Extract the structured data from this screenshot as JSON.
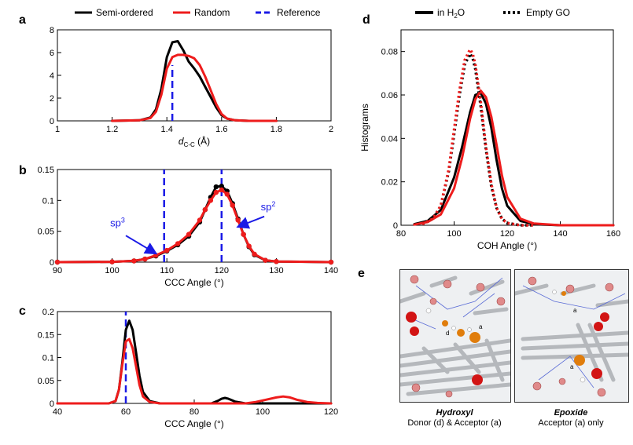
{
  "colors": {
    "black": "#000000",
    "red": "#ee1c1c",
    "blue": "#1a1ae6",
    "bg": "#ffffff"
  },
  "chart_data": [
    {
      "panel": "a",
      "type": "line",
      "xlabel": "d",
      "xlabel_sub": "C-C",
      "xlabel_unit": "(Å)",
      "ylabel": "",
      "xlim": [
        1,
        2
      ],
      "ylim": [
        0,
        8
      ],
      "xticks": [
        1,
        1.2,
        1.4,
        1.6,
        1.8,
        2
      ],
      "yticks": [
        0,
        2,
        4,
        6,
        8
      ],
      "legend": [
        {
          "name": "Semi-ordered",
          "color": "#000000",
          "style": "solid"
        },
        {
          "name": "Random",
          "color": "#ee1c1c",
          "style": "solid"
        },
        {
          "name": "Reference",
          "color": "#1a1ae6",
          "style": "dashed"
        }
      ],
      "series": [
        {
          "name": "Semi-ordered",
          "color": "#000000",
          "x": [
            1.2,
            1.3,
            1.34,
            1.36,
            1.38,
            1.4,
            1.42,
            1.44,
            1.46,
            1.48,
            1.5,
            1.52,
            1.54,
            1.56,
            1.58,
            1.6,
            1.62,
            1.65,
            1.7,
            1.8
          ],
          "y": [
            0,
            0.05,
            0.3,
            1.0,
            2.8,
            5.6,
            6.9,
            7.0,
            6.2,
            5.2,
            4.6,
            3.9,
            3.0,
            2.1,
            1.2,
            0.5,
            0.2,
            0.05,
            0,
            0
          ]
        },
        {
          "name": "Random",
          "color": "#ee1c1c",
          "x": [
            1.2,
            1.3,
            1.34,
            1.36,
            1.38,
            1.4,
            1.42,
            1.44,
            1.46,
            1.48,
            1.5,
            1.52,
            1.54,
            1.56,
            1.58,
            1.6,
            1.62,
            1.65,
            1.7,
            1.8
          ],
          "y": [
            0,
            0.05,
            0.25,
            0.8,
            2.3,
            4.6,
            5.6,
            5.8,
            5.8,
            5.7,
            5.5,
            4.9,
            3.9,
            2.7,
            1.5,
            0.6,
            0.2,
            0.05,
            0,
            0
          ]
        }
      ],
      "reference_lines": [
        {
          "x": 1.42,
          "ymax": 4.9
        }
      ]
    },
    {
      "panel": "b",
      "type": "line",
      "xlabel": "CCC Angle (°)",
      "ylabel": "",
      "xlim": [
        90,
        140
      ],
      "ylim": [
        0,
        0.15
      ],
      "xticks": [
        90,
        100,
        110,
        120,
        130,
        140
      ],
      "yticks": [
        0,
        0.05,
        0.1,
        0.15
      ],
      "series": [
        {
          "name": "Semi-ordered",
          "color": "#000000",
          "x": [
            90,
            100,
            104,
            106,
            108,
            110,
            112,
            114,
            116,
            117,
            118,
            119,
            120,
            121,
            122,
            123,
            124,
            125,
            126,
            128,
            130,
            140
          ],
          "y": [
            0,
            0.0005,
            0.002,
            0.005,
            0.01,
            0.018,
            0.028,
            0.042,
            0.065,
            0.085,
            0.105,
            0.122,
            0.123,
            0.115,
            0.095,
            0.07,
            0.045,
            0.025,
            0.012,
            0.003,
            0.001,
            0
          ]
        },
        {
          "name": "Random",
          "color": "#ee1c1c",
          "x": [
            90,
            100,
            104,
            106,
            108,
            110,
            112,
            114,
            116,
            117,
            118,
            119,
            120,
            121,
            122,
            123,
            124,
            125,
            126,
            128,
            130,
            140
          ],
          "y": [
            0,
            0.0005,
            0.002,
            0.005,
            0.011,
            0.019,
            0.03,
            0.045,
            0.068,
            0.085,
            0.1,
            0.113,
            0.117,
            0.11,
            0.092,
            0.068,
            0.045,
            0.026,
            0.013,
            0.003,
            0.001,
            0
          ]
        }
      ],
      "reference_lines": [
        {
          "x": 109.5,
          "ymax": 0.15
        },
        {
          "x": 120,
          "ymax": 0.15
        }
      ],
      "annotations": [
        {
          "text": "sp",
          "sup": "3",
          "x": 101,
          "y": 0.058
        },
        {
          "text": "sp",
          "sup": "2",
          "x": 128.5,
          "y": 0.084
        }
      ]
    },
    {
      "panel": "c",
      "type": "line",
      "xlabel": "CCC Angle (°)",
      "ylabel": "",
      "xlim": [
        40,
        120
      ],
      "ylim": [
        0,
        0.2
      ],
      "xticks": [
        40,
        60,
        80,
        100,
        120
      ],
      "yticks": [
        0,
        0.05,
        0.1,
        0.15,
        0.2
      ],
      "series": [
        {
          "name": "Semi-ordered",
          "color": "#000000",
          "x": [
            40,
            55,
            57,
            58,
            59,
            60,
            61,
            62,
            63,
            64,
            65,
            67,
            70,
            85,
            87,
            88,
            89,
            90,
            92,
            95,
            120
          ],
          "y": [
            0,
            0,
            0.005,
            0.03,
            0.09,
            0.16,
            0.18,
            0.16,
            0.11,
            0.06,
            0.025,
            0.005,
            0,
            0,
            0.006,
            0.01,
            0.012,
            0.01,
            0.004,
            0,
            0
          ]
        },
        {
          "name": "Random",
          "color": "#ee1c1c",
          "x": [
            40,
            55,
            57,
            58,
            59,
            60,
            61,
            62,
            63,
            64,
            65,
            67,
            70,
            95,
            98,
            101,
            104,
            106,
            108,
            110,
            113,
            116,
            120
          ],
          "y": [
            0,
            0,
            0.005,
            0.03,
            0.085,
            0.135,
            0.14,
            0.12,
            0.08,
            0.04,
            0.015,
            0.003,
            0,
            0,
            0.003,
            0.008,
            0.013,
            0.015,
            0.013,
            0.008,
            0.003,
            0.001,
            0
          ]
        }
      ],
      "reference_lines": [
        {
          "x": 60,
          "ymax": 0.2
        }
      ]
    },
    {
      "panel": "d",
      "type": "line",
      "xlabel": "COH Angle (°)",
      "ylabel": "Histograms",
      "xlim": [
        80,
        160
      ],
      "ylim": [
        0,
        0.09
      ],
      "xticks": [
        80,
        100,
        120,
        140,
        160
      ],
      "yticks": [
        0,
        0.02,
        0.04,
        0.06,
        0.08
      ],
      "legend": [
        {
          "name": "in H",
          "sub": "2",
          "tail": "O",
          "style": "solid"
        },
        {
          "name": "Empty GO",
          "style": "dotted"
        }
      ],
      "series": [
        {
          "name": "in H2O black",
          "color": "#000000",
          "style": "solid",
          "x": [
            85,
            90,
            95,
            100,
            103,
            106,
            108,
            110,
            112,
            114,
            116,
            118,
            120,
            125,
            130,
            140,
            160
          ],
          "y": [
            0.0005,
            0.002,
            0.007,
            0.022,
            0.036,
            0.052,
            0.06,
            0.061,
            0.056,
            0.045,
            0.03,
            0.017,
            0.009,
            0.002,
            0.0005,
            0,
            0
          ]
        },
        {
          "name": "in H2O red",
          "color": "#ee1c1c",
          "style": "solid",
          "x": [
            85,
            90,
            95,
            100,
            103,
            106,
            108,
            110,
            112,
            114,
            116,
            118,
            120,
            125,
            130,
            140,
            160
          ],
          "y": [
            0.0003,
            0.0015,
            0.005,
            0.017,
            0.031,
            0.049,
            0.058,
            0.062,
            0.059,
            0.05,
            0.037,
            0.023,
            0.013,
            0.003,
            0.0008,
            0,
            0
          ]
        },
        {
          "name": "Empty GO black",
          "color": "#000000",
          "style": "dotted",
          "x": [
            88,
            92,
            95,
            98,
            100,
            102,
            104,
            106,
            107,
            108,
            110,
            112,
            114,
            116,
            118,
            120,
            125,
            130
          ],
          "y": [
            0.0005,
            0.003,
            0.009,
            0.025,
            0.042,
            0.06,
            0.074,
            0.079,
            0.077,
            0.072,
            0.055,
            0.035,
            0.018,
            0.008,
            0.003,
            0.001,
            0,
            0
          ]
        },
        {
          "name": "Empty GO red",
          "color": "#ee1c1c",
          "style": "dotted",
          "x": [
            88,
            92,
            95,
            98,
            100,
            102,
            104,
            106,
            107,
            108,
            110,
            112,
            114,
            116,
            118,
            120,
            125,
            130
          ],
          "y": [
            0.0005,
            0.003,
            0.009,
            0.026,
            0.044,
            0.062,
            0.076,
            0.081,
            0.079,
            0.074,
            0.057,
            0.036,
            0.019,
            0.008,
            0.003,
            0.001,
            0,
            0
          ]
        }
      ]
    }
  ],
  "panel_e": {
    "label": "e",
    "left": {
      "title": "Hydroxyl",
      "subtitle": "Donor (d) & Acceptor (a)",
      "marks": [
        "d",
        "a"
      ]
    },
    "right": {
      "title": "Epoxide",
      "subtitle": "Acceptor (a) only",
      "marks": [
        "a",
        "a"
      ]
    }
  }
}
